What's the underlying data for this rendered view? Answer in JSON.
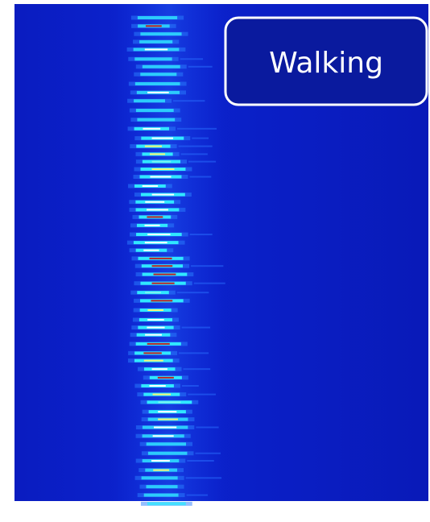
{
  "label": "Walking"
}
